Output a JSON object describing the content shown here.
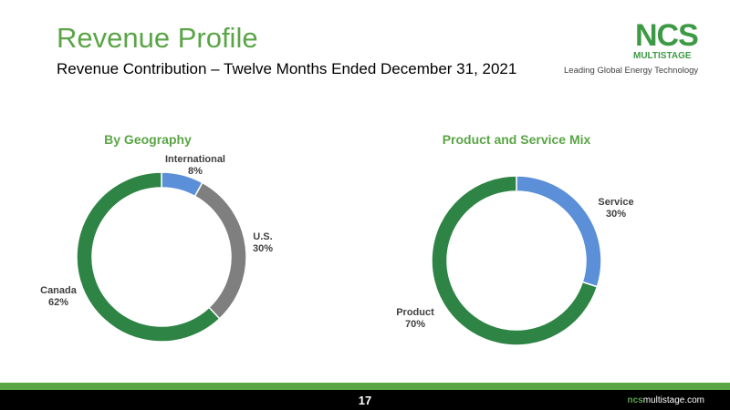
{
  "slide": {
    "title": "Revenue Profile",
    "subtitle": "Revenue Contribution – Twelve Months Ended December 31, 2021",
    "page_number": "17"
  },
  "logo": {
    "name": "NCS",
    "sub": "MULTISTAGE",
    "tagline": "Leading Global Energy Technology"
  },
  "footer": {
    "url_prefix": "ncs",
    "url_suffix": "multistage.com"
  },
  "colors": {
    "brand_green": "#5aa546",
    "dark_green": "#2e8444",
    "blue": "#5b8fd7",
    "gray": "#7f7f7f"
  },
  "chart_data": [
    {
      "type": "pie",
      "title": "By Geography",
      "slices": [
        {
          "label": "International",
          "value_label": "8%",
          "value": 8,
          "color": "#5b8fd7"
        },
        {
          "label": "U.S.",
          "value_label": "30%",
          "value": 30,
          "color": "#7f7f7f"
        },
        {
          "label": "Canada",
          "value_label": "62%",
          "value": 62,
          "color": "#2e8444"
        }
      ]
    },
    {
      "type": "pie",
      "title": "Product and Service Mix",
      "slices": [
        {
          "label": "Service",
          "value_label": "30%",
          "value": 30,
          "color": "#5b8fd7"
        },
        {
          "label": "Product",
          "value_label": "70%",
          "value": 70,
          "color": "#2e8444"
        }
      ]
    }
  ]
}
